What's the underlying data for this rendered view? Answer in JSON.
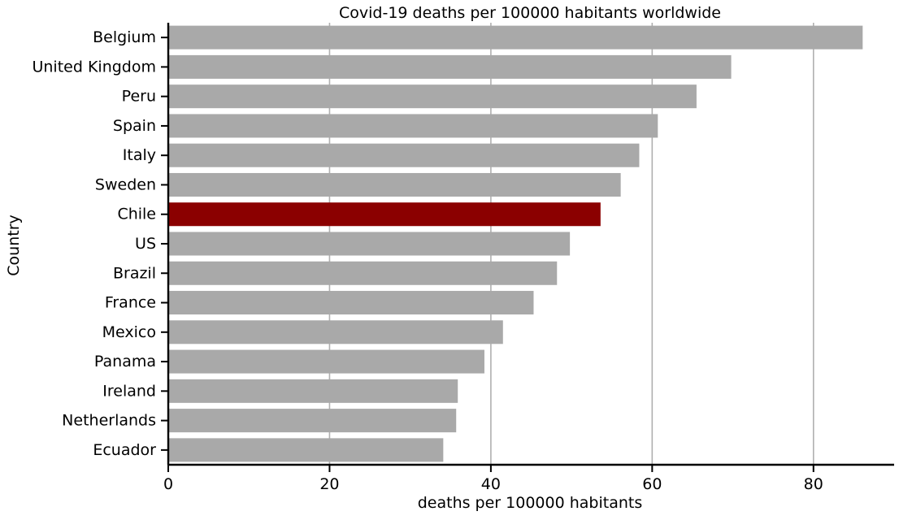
{
  "chart_data": {
    "type": "bar",
    "orientation": "horizontal",
    "title": "Covid-19 deaths per 100000 habitants worldwide",
    "xlabel": "deaths per 100000 habitants",
    "ylabel": "Country",
    "xlim": [
      0,
      90
    ],
    "xticks": [
      0,
      20,
      40,
      60,
      80
    ],
    "grid": "vertical",
    "categories": [
      "Belgium",
      "United Kingdom",
      "Peru",
      "Spain",
      "Italy",
      "Sweden",
      "Chile",
      "US",
      "Brazil",
      "France",
      "Mexico",
      "Panama",
      "Ireland",
      "Netherlands",
      "Ecuador"
    ],
    "values": [
      86.1,
      69.8,
      65.5,
      60.7,
      58.4,
      56.1,
      53.6,
      49.8,
      48.2,
      45.3,
      41.5,
      39.2,
      35.9,
      35.7,
      34.1
    ],
    "highlight": "Chile",
    "colors": {
      "bar": "#a9a9a9",
      "highlight": "#8b0000",
      "grid": "#b0b0b0",
      "axis": "#000000"
    }
  }
}
